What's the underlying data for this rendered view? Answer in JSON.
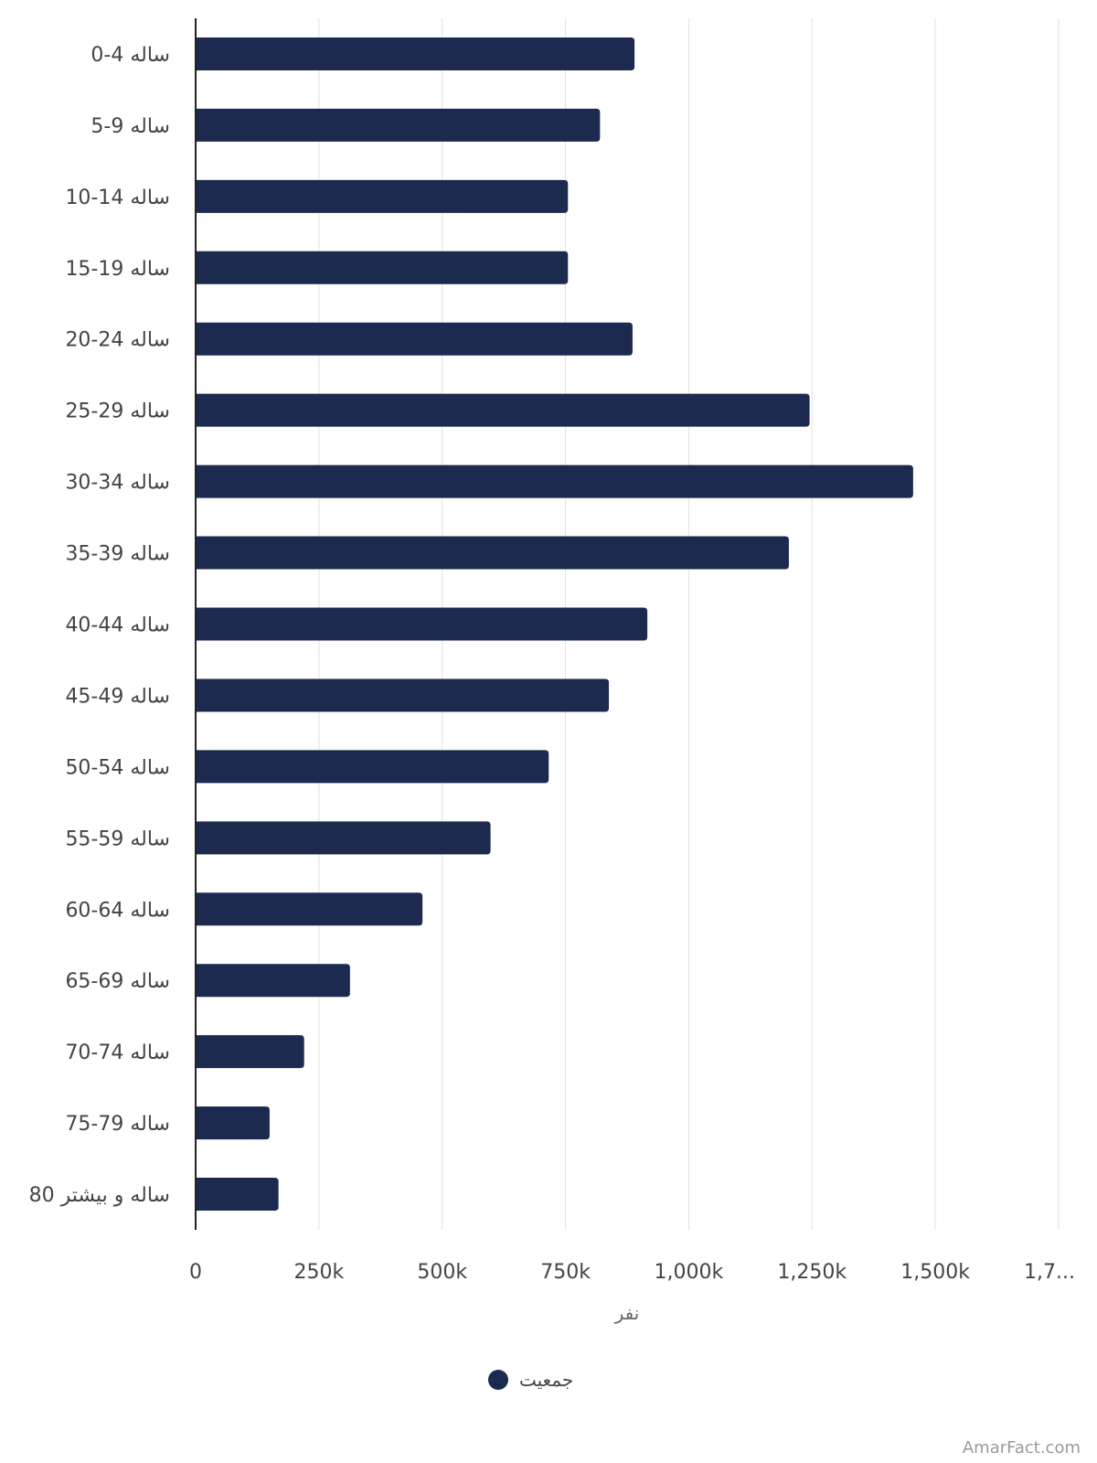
{
  "chart_data": {
    "type": "bar",
    "orientation": "horizontal",
    "categories": [
      "0-4 ساله",
      "5-9 ساله",
      "10-14 ساله",
      "15-19 ساله",
      "20-24 ساله",
      "25-29 ساله",
      "30-34 ساله",
      "35-39 ساله",
      "40-44 ساله",
      "45-49 ساله",
      "50-54 ساله",
      "55-59 ساله",
      "60-64 ساله",
      "65-69 ساله",
      "70-74 ساله",
      "75-79 ساله",
      "80 ساله و بیشتر"
    ],
    "series": [
      {
        "name": "جمعیت",
        "values": [
          890000,
          820000,
          755000,
          755000,
          886000,
          1245000,
          1455000,
          1203000,
          916000,
          838000,
          716000,
          598000,
          460000,
          313000,
          220000,
          150000,
          168000
        ]
      }
    ],
    "x_ticks": [
      "0",
      "250k",
      "500k",
      "750k",
      "1,000k",
      "1,250k",
      "1,500k",
      "1,7..."
    ],
    "xlabel": "نفر",
    "xlim": [
      0,
      1750000
    ],
    "grid": "vertical",
    "legend_position": "bottom",
    "colors": {
      "bar": "#1b2a4e",
      "grid": "#e2e2e2",
      "axis": "#222222"
    }
  },
  "watermark": "AmarFact.com"
}
